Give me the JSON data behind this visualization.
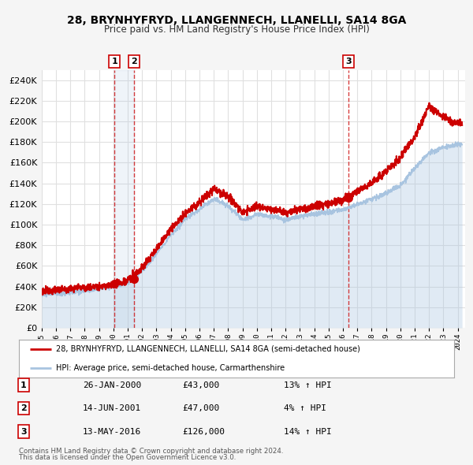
{
  "title": "28, BRYNHYFRYD, LLANGENNECH, LLANELLI, SA14 8GA",
  "subtitle": "Price paid vs. HM Land Registry's House Price Index (HPI)",
  "bg_color": "#f5f5f5",
  "plot_bg_color": "#ffffff",
  "grid_color": "#e0e0e0",
  "hpi_color": "#a8c4e0",
  "price_color": "#cc0000",
  "sale_marker_color": "#cc0000",
  "legend_label_price": "28, BRYNHYFRYD, LLANGENNECH, LLANELLI, SA14 8GA (semi-detached house)",
  "legend_label_hpi": "HPI: Average price, semi-detached house, Carmarthenshire",
  "footer1": "Contains HM Land Registry data © Crown copyright and database right 2024.",
  "footer2": "This data is licensed under the Open Government Licence v3.0.",
  "sales": [
    {
      "num": 1,
      "date_dec": 2000.07,
      "price": 43000,
      "label": "26-JAN-2000",
      "pct": "13%"
    },
    {
      "num": 2,
      "date_dec": 2001.45,
      "price": 47000,
      "label": "14-JUN-2001",
      "pct": "4%"
    },
    {
      "num": 3,
      "date_dec": 2016.37,
      "price": 126000,
      "label": "13-MAY-2016",
      "pct": "14%"
    }
  ],
  "ylim": [
    0,
    250000
  ],
  "ytick_step": 20000,
  "xmin": 1995,
  "xmax": 2024.5,
  "hpi_years": [
    1995,
    1995.5,
    1996,
    1996.5,
    1997,
    1997.5,
    1998,
    1998.5,
    1999,
    1999.5,
    2000,
    2000.5,
    2001,
    2001.5,
    2002,
    2002.5,
    2003,
    2003.5,
    2004,
    2004.5,
    2005,
    2005.5,
    2006,
    2006.5,
    2007,
    2007.5,
    2008,
    2008.5,
    2009,
    2009.5,
    2010,
    2010.5,
    2011,
    2011.5,
    2012,
    2012.5,
    2013,
    2013.5,
    2014,
    2014.5,
    2015,
    2015.5,
    2016,
    2016.5,
    2017,
    2017.5,
    2018,
    2018.5,
    2019,
    2019.5,
    2020,
    2020.5,
    2021,
    2021.5,
    2022,
    2022.5,
    2023,
    2023.5,
    2024,
    2024.3
  ],
  "hpi_vals": [
    32000,
    32500,
    33000,
    33500,
    34000,
    35000,
    36000,
    37000,
    38000,
    39000,
    40000,
    42000,
    44000,
    49000,
    55000,
    63000,
    72000,
    81000,
    90000,
    97000,
    105000,
    110000,
    115000,
    120000,
    125000,
    122000,
    118000,
    112000,
    105000,
    107000,
    110000,
    109000,
    108000,
    107000,
    105000,
    106000,
    108000,
    109000,
    110000,
    111000,
    112000,
    113000,
    115000,
    117000,
    120000,
    122000,
    125000,
    127000,
    130000,
    134000,
    138000,
    146000,
    155000,
    162000,
    170000,
    172000,
    175000,
    176000,
    178000,
    178000
  ],
  "price_years": [
    1995,
    1995.5,
    1996,
    1996.5,
    1997,
    1997.5,
    1998,
    1998.5,
    1999,
    1999.5,
    2000,
    2000.5,
    2001,
    2001.5,
    2002,
    2002.5,
    2003,
    2003.5,
    2004,
    2004.5,
    2005,
    2005.5,
    2006,
    2006.5,
    2007,
    2007.5,
    2008,
    2008.5,
    2009,
    2009.5,
    2010,
    2010.5,
    2011,
    2011.5,
    2012,
    2012.5,
    2013,
    2013.5,
    2014,
    2014.5,
    2015,
    2015.5,
    2016,
    2016.5,
    2017,
    2017.5,
    2018,
    2018.5,
    2019,
    2019.5,
    2020,
    2020.5,
    2021,
    2021.5,
    2022,
    2022.5,
    2023,
    2023.5,
    2024,
    2024.3
  ],
  "price_vals": [
    36000,
    36500,
    37000,
    37500,
    38000,
    38500,
    39000,
    39500,
    40000,
    41000,
    42000,
    44000,
    46000,
    51000,
    58000,
    67000,
    76000,
    86000,
    96000,
    103000,
    110000,
    116000,
    122000,
    128000,
    135000,
    131000,
    128000,
    120000,
    112000,
    115000,
    118000,
    116000,
    115000,
    113000,
    112000,
    113000,
    115000,
    116000,
    118000,
    119000,
    120000,
    122000,
    124000,
    128000,
    132000,
    136000,
    140000,
    146000,
    152000,
    158000,
    165000,
    175000,
    185000,
    200000,
    215000,
    210000,
    205000,
    200000,
    198000,
    198000
  ]
}
